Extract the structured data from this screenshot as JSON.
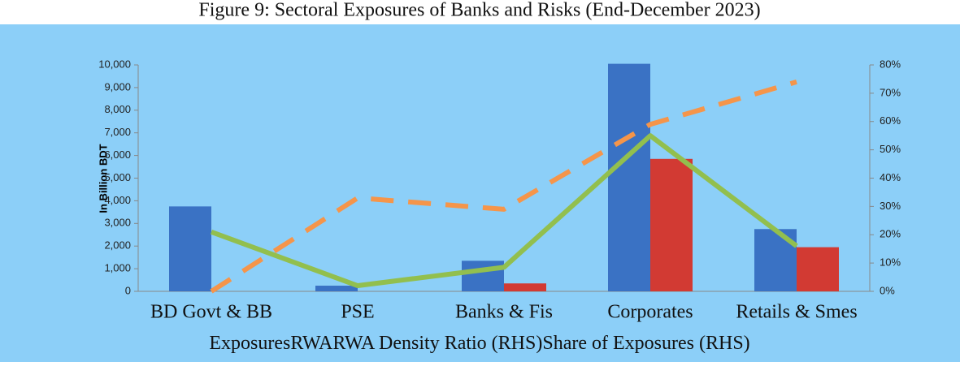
{
  "chart_data": {
    "type": "bar",
    "title": "Figure 9: Sectoral Exposures of Banks and Risks (End-December 2023)",
    "y_label": "In Billion BDT",
    "categories": [
      "BD Govt & BB",
      "PSE",
      "Banks & Fis",
      "Corporates",
      "Retails & Smes"
    ],
    "series": [
      {
        "name": "Exposures",
        "color": "#3a72c4",
        "values": [
          3750,
          250,
          1350,
          10050,
          2750
        ]
      },
      {
        "name": "RWA",
        "color": "#d23a33",
        "values": [
          0,
          0,
          350,
          5850,
          1950
        ]
      },
      {
        "name": "RWA Density Ratio (RHS)",
        "color": "#f5954a",
        "axis": "y2",
        "type": "line",
        "dashed": true,
        "values": [
          0,
          33,
          29,
          59,
          74
        ]
      },
      {
        "name": "Share of Exposures (RHS)",
        "color": "#92bf4e",
        "axis": "y2",
        "type": "line",
        "values": [
          21,
          2,
          8.5,
          55,
          16
        ]
      }
    ],
    "ylim": [
      0,
      10000
    ],
    "yticks": [
      0,
      {
        "value": 1000,
        "label": "1,000"
      },
      {
        "value": 2000,
        "label": "2,000"
      },
      {
        "value": 3000,
        "label": "3,000"
      },
      {
        "value": 4000,
        "label": "4,000"
      },
      {
        "value": 5000,
        "label": "5,000"
      },
      {
        "value": 6000,
        "label": "6,000"
      },
      {
        "value": 7000,
        "label": "7,000"
      },
      {
        "value": 8000,
        "label": "8,000"
      },
      {
        "value": 9000,
        "label": "9,000"
      },
      {
        "value": 10000,
        "label": "10,000"
      }
    ],
    "y2lim": [
      0,
      80
    ],
    "y2ticks": [
      {
        "value": 0,
        "label": "0%"
      },
      {
        "value": 10,
        "label": "10%"
      },
      {
        "value": 20,
        "label": "20%"
      },
      {
        "value": 30,
        "label": "30%"
      },
      {
        "value": 40,
        "label": "40%"
      },
      {
        "value": 50,
        "label": "50%"
      },
      {
        "value": 60,
        "label": "60%"
      },
      {
        "value": 70,
        "label": "70%"
      },
      {
        "value": 80,
        "label": "80%"
      }
    ]
  }
}
